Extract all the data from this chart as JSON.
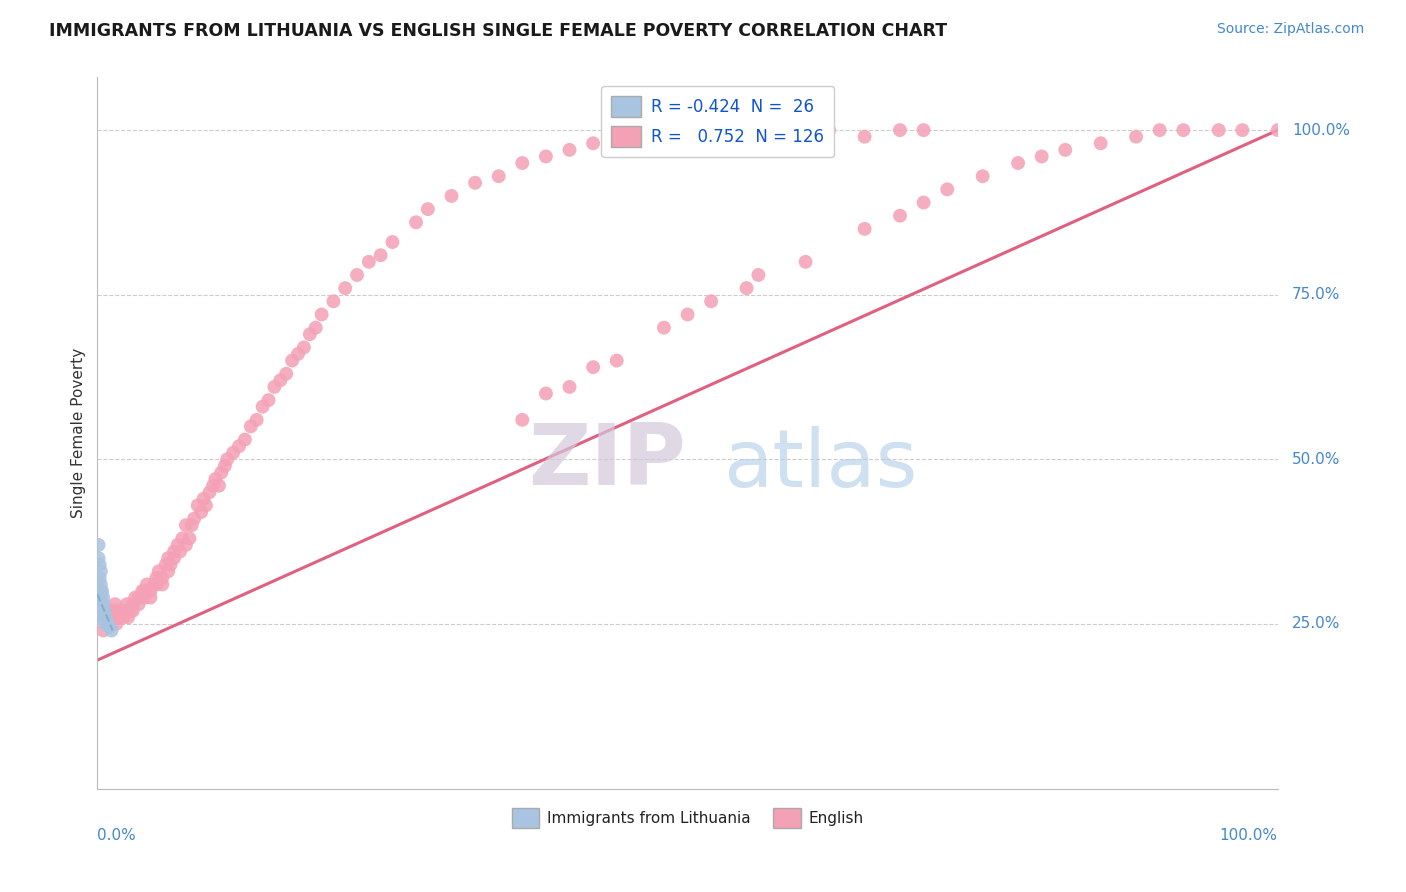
{
  "title": "IMMIGRANTS FROM LITHUANIA VS ENGLISH SINGLE FEMALE POVERTY CORRELATION CHART",
  "source": "Source: ZipAtlas.com",
  "ylabel": "Single Female Poverty",
  "legend_blue_r": "-0.424",
  "legend_blue_n": "26",
  "legend_pink_r": "0.752",
  "legend_pink_n": "126",
  "blue_color": "#a8c4e0",
  "pink_color": "#f4a0b5",
  "blue_line_color": "#8aabcc",
  "pink_line_color": "#e06080",
  "watermark_zip_color": "#d8cce0",
  "watermark_atlas_color": "#a8c8e8",
  "pink_x": [
    0.005,
    0.008,
    0.01,
    0.012,
    0.012,
    0.015,
    0.015,
    0.016,
    0.018,
    0.02,
    0.022,
    0.022,
    0.025,
    0.025,
    0.026,
    0.028,
    0.03,
    0.03,
    0.032,
    0.035,
    0.035,
    0.038,
    0.04,
    0.04,
    0.042,
    0.045,
    0.045,
    0.048,
    0.05,
    0.05,
    0.052,
    0.055,
    0.055,
    0.058,
    0.06,
    0.06,
    0.062,
    0.065,
    0.065,
    0.068,
    0.07,
    0.072,
    0.075,
    0.075,
    0.078,
    0.08,
    0.082,
    0.085,
    0.088,
    0.09,
    0.092,
    0.095,
    0.098,
    0.1,
    0.103,
    0.105,
    0.108,
    0.11,
    0.115,
    0.12,
    0.125,
    0.13,
    0.135,
    0.14,
    0.145,
    0.15,
    0.155,
    0.16,
    0.165,
    0.17,
    0.175,
    0.18,
    0.185,
    0.19,
    0.2,
    0.21,
    0.22,
    0.23,
    0.24,
    0.25,
    0.27,
    0.28,
    0.3,
    0.32,
    0.34,
    0.36,
    0.38,
    0.4,
    0.42,
    0.45,
    0.48,
    0.5,
    0.52,
    0.55,
    0.58,
    0.6,
    0.62,
    0.65,
    0.68,
    0.7,
    0.38,
    0.42,
    0.5,
    0.55,
    0.6,
    0.65,
    0.68,
    0.7,
    0.72,
    0.75,
    0.78,
    0.8,
    0.82,
    0.85,
    0.88,
    0.9,
    0.92,
    0.95,
    0.97,
    1.0,
    0.36,
    0.4,
    0.44,
    0.48,
    0.52,
    0.56
  ],
  "pink_y": [
    0.24,
    0.26,
    0.25,
    0.27,
    0.26,
    0.28,
    0.27,
    0.25,
    0.26,
    0.27,
    0.27,
    0.26,
    0.28,
    0.27,
    0.26,
    0.27,
    0.28,
    0.27,
    0.29,
    0.29,
    0.28,
    0.3,
    0.3,
    0.29,
    0.31,
    0.3,
    0.29,
    0.31,
    0.32,
    0.31,
    0.33,
    0.32,
    0.31,
    0.34,
    0.33,
    0.35,
    0.34,
    0.36,
    0.35,
    0.37,
    0.36,
    0.38,
    0.37,
    0.4,
    0.38,
    0.4,
    0.41,
    0.43,
    0.42,
    0.44,
    0.43,
    0.45,
    0.46,
    0.47,
    0.46,
    0.48,
    0.49,
    0.5,
    0.51,
    0.52,
    0.53,
    0.55,
    0.56,
    0.58,
    0.59,
    0.61,
    0.62,
    0.63,
    0.65,
    0.66,
    0.67,
    0.69,
    0.7,
    0.72,
    0.74,
    0.76,
    0.78,
    0.8,
    0.81,
    0.83,
    0.86,
    0.88,
    0.9,
    0.92,
    0.93,
    0.95,
    0.96,
    0.97,
    0.98,
    0.99,
    1.0,
    1.0,
    0.99,
    1.0,
    0.99,
    1.0,
    1.0,
    0.99,
    1.0,
    1.0,
    0.6,
    0.64,
    0.72,
    0.76,
    0.8,
    0.85,
    0.87,
    0.89,
    0.91,
    0.93,
    0.95,
    0.96,
    0.97,
    0.98,
    0.99,
    1.0,
    1.0,
    1.0,
    1.0,
    1.0,
    0.56,
    0.61,
    0.65,
    0.7,
    0.74,
    0.78
  ],
  "blue_x": [
    0.001,
    0.001,
    0.002,
    0.002,
    0.003,
    0.003,
    0.003,
    0.003,
    0.004,
    0.004,
    0.004,
    0.005,
    0.005,
    0.005,
    0.005,
    0.006,
    0.006,
    0.006,
    0.007,
    0.007,
    0.007,
    0.008,
    0.008,
    0.009,
    0.01,
    0.012
  ],
  "blue_y": [
    0.37,
    0.35,
    0.34,
    0.32,
    0.33,
    0.31,
    0.3,
    0.29,
    0.3,
    0.28,
    0.27,
    0.29,
    0.28,
    0.27,
    0.26,
    0.27,
    0.26,
    0.255,
    0.26,
    0.255,
    0.25,
    0.255,
    0.25,
    0.25,
    0.245,
    0.24
  ],
  "pink_line_x0": 0.0,
  "pink_line_y0": 0.195,
  "pink_line_x1": 1.0,
  "pink_line_y1": 1.0,
  "blue_line_x0": 0.0,
  "blue_line_y0": 0.295,
  "blue_line_x1": 0.013,
  "blue_line_y1": 0.24,
  "xlim": [
    0.0,
    1.0
  ],
  "ylim": [
    0.0,
    1.08
  ],
  "grid_vals": [
    0.25,
    0.5,
    0.75,
    1.0
  ],
  "right_tick_labels": [
    "25.0%",
    "50.0%",
    "75.0%",
    "100.0%"
  ]
}
